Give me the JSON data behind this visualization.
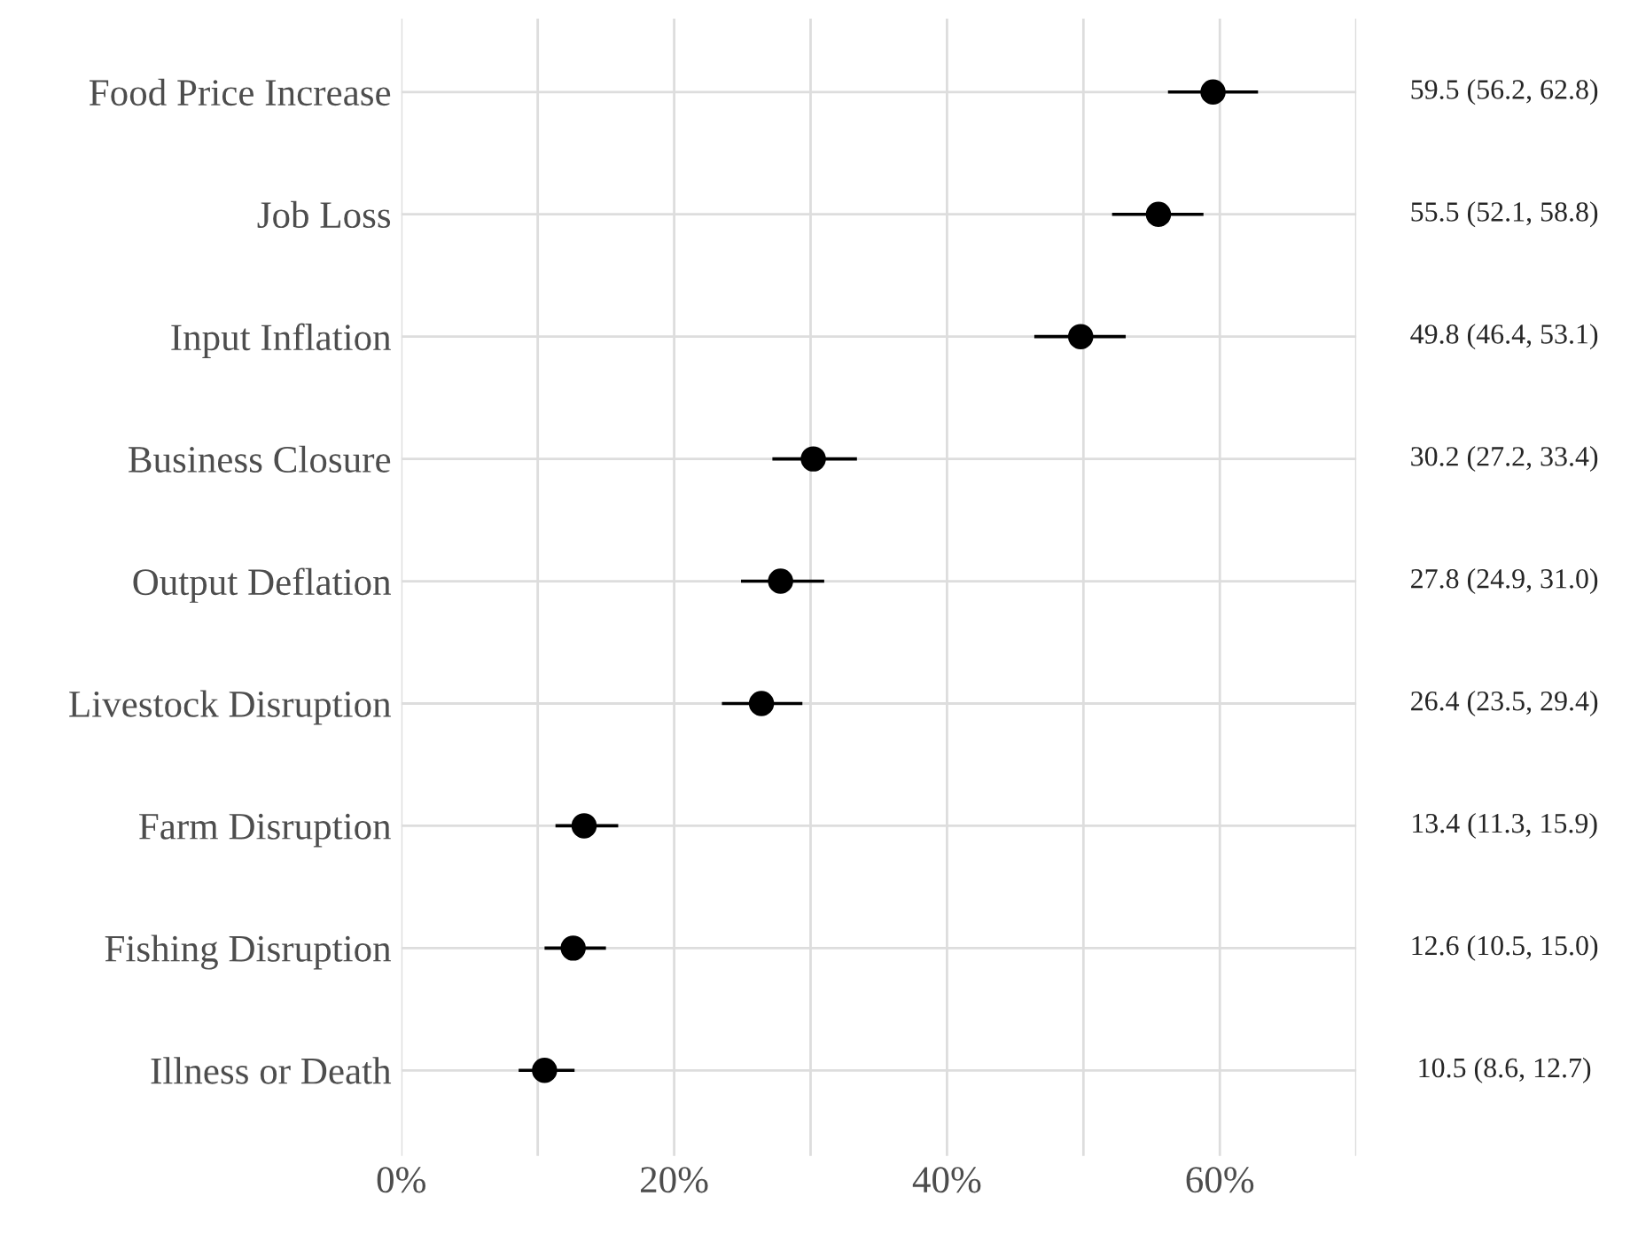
{
  "chart_data": {
    "type": "scatter",
    "orientation": "horizontal",
    "marker": "circle",
    "grid": true,
    "categories": [
      "Food Price Increase",
      "Job Loss",
      "Input Inflation",
      "Business Closure",
      "Output Deflation",
      "Livestock Disruption",
      "Farm Disruption",
      "Fishing Disruption",
      "Illness or Death"
    ],
    "series": [
      {
        "color": "#000000",
        "values": [
          59.5,
          55.5,
          49.8,
          30.2,
          27.8,
          26.4,
          13.4,
          12.6,
          10.5
        ],
        "errors": [
          [
            56.2,
            62.8
          ],
          [
            52.1,
            58.8
          ],
          [
            46.4,
            53.1
          ],
          [
            27.2,
            33.4
          ],
          [
            24.9,
            31.0
          ],
          [
            23.5,
            29.4
          ],
          [
            11.3,
            15.9
          ],
          [
            10.5,
            15.0
          ],
          [
            8.6,
            12.7
          ]
        ],
        "value_labels": [
          "59.5 (56.2, 62.8)",
          "55.5 (52.1, 58.8)",
          "49.8 (46.4, 53.1)",
          "30.2 (27.2, 33.4)",
          "27.8 (24.9, 31.0)",
          "26.4 (23.5, 29.4)",
          "13.4 (11.3, 15.9)",
          "12.6 (10.5, 15.0)",
          "10.5 (8.6, 12.7)"
        ]
      }
    ],
    "xlim": [
      0,
      70
    ],
    "xticks": [
      {
        "value": 0,
        "label": "0%"
      },
      {
        "value": 10,
        "label": null
      },
      {
        "value": 20,
        "label": "20%"
      },
      {
        "value": 30,
        "label": null
      },
      {
        "value": 40,
        "label": "40%"
      },
      {
        "value": 50,
        "label": null
      },
      {
        "value": 60,
        "label": "60%"
      },
      {
        "value": 70,
        "label": null
      }
    ]
  }
}
